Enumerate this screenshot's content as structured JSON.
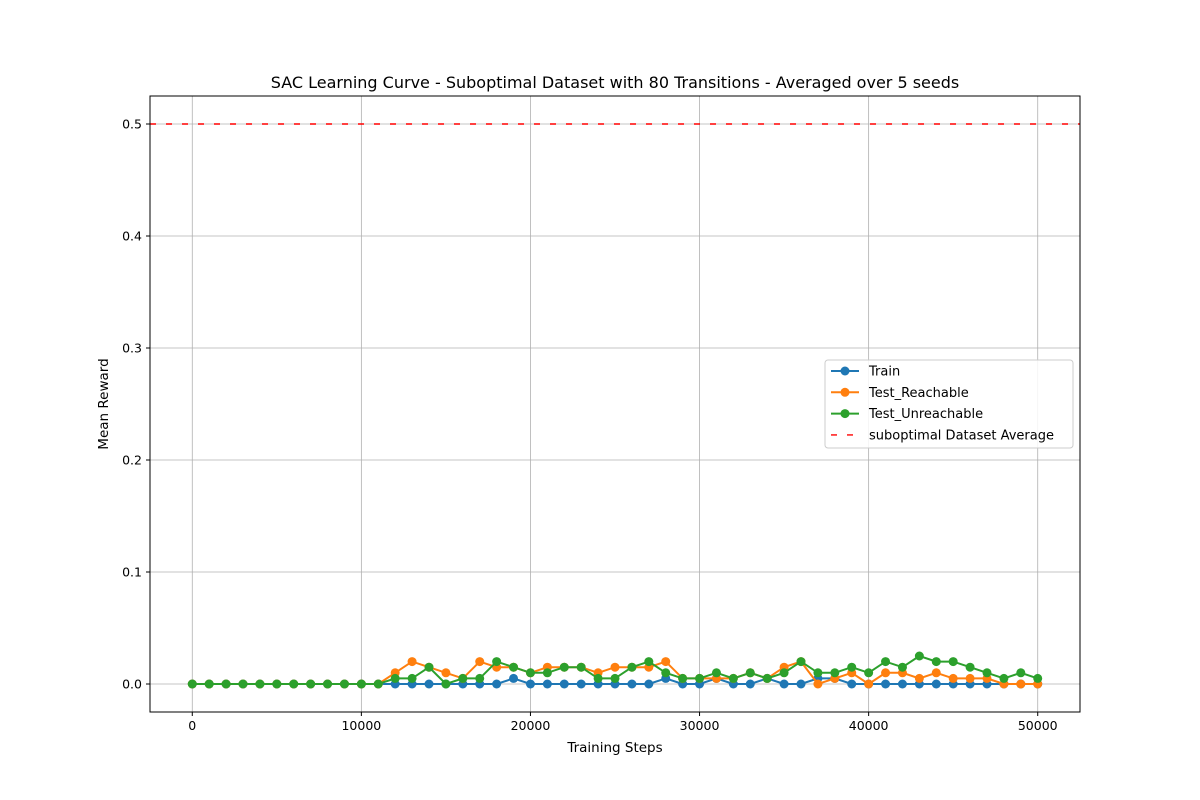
{
  "chart_data": {
    "type": "line",
    "title": "SAC Learning Curve - Suboptimal Dataset with 80 Transitions - Averaged over 5 seeds",
    "xlabel": "Training Steps",
    "ylabel": "Mean Reward",
    "xlim": [
      -2500,
      52500
    ],
    "ylim": [
      -0.025,
      0.525
    ],
    "xticks": [
      0,
      10000,
      20000,
      30000,
      40000,
      50000
    ],
    "xtick_labels": [
      "0",
      "10000",
      "20000",
      "30000",
      "40000",
      "50000"
    ],
    "yticks": [
      0.0,
      0.1,
      0.2,
      0.3,
      0.4,
      0.5
    ],
    "ytick_labels": [
      "0.0",
      "0.1",
      "0.2",
      "0.3",
      "0.4",
      "0.5"
    ],
    "grid": true,
    "legend_position": "center-right",
    "x": [
      0,
      1000,
      2000,
      3000,
      4000,
      5000,
      6000,
      7000,
      8000,
      9000,
      10000,
      11000,
      12000,
      13000,
      14000,
      15000,
      16000,
      17000,
      18000,
      19000,
      20000,
      21000,
      22000,
      23000,
      24000,
      25000,
      26000,
      27000,
      28000,
      29000,
      30000,
      31000,
      32000,
      33000,
      34000,
      35000,
      36000,
      37000,
      38000,
      39000,
      40000,
      41000,
      42000,
      43000,
      44000,
      45000,
      46000,
      47000,
      48000,
      49000,
      50000
    ],
    "series": [
      {
        "name": "Train",
        "color": "#1f77b4",
        "values": [
          0,
          0,
          0,
          0,
          0,
          0,
          0,
          0,
          0,
          0,
          0,
          0,
          0,
          0,
          0,
          0,
          0,
          0,
          0,
          0.005,
          0,
          0,
          0,
          0,
          0,
          0,
          0,
          0,
          0.005,
          0,
          0,
          0.005,
          0,
          0,
          0.005,
          0,
          0,
          0.005,
          0.005,
          0,
          0,
          0,
          0,
          0,
          0,
          0,
          0,
          0,
          0,
          0,
          0
        ]
      },
      {
        "name": "Test_Reachable",
        "color": "#ff7f0e",
        "values": [
          0,
          0,
          0,
          0,
          0,
          0,
          0,
          0,
          0,
          0,
          0,
          0,
          0.01,
          0.02,
          0.015,
          0.01,
          0.005,
          0.02,
          0.015,
          0.015,
          0.01,
          0.015,
          0.015,
          0.015,
          0.01,
          0.015,
          0.015,
          0.015,
          0.02,
          0.005,
          0.005,
          0.005,
          0.005,
          0.01,
          0.005,
          0.015,
          0.02,
          0,
          0.005,
          0.01,
          0,
          0.01,
          0.01,
          0.005,
          0.01,
          0.005,
          0.005,
          0.005,
          0,
          0,
          0
        ]
      },
      {
        "name": "Test_Unreachable",
        "color": "#2ca02c",
        "values": [
          0,
          0,
          0,
          0,
          0,
          0,
          0,
          0,
          0,
          0,
          0,
          0,
          0.005,
          0.005,
          0.015,
          0,
          0.005,
          0.005,
          0.02,
          0.015,
          0.01,
          0.01,
          0.015,
          0.015,
          0.005,
          0.005,
          0.015,
          0.02,
          0.01,
          0.005,
          0.005,
          0.01,
          0.005,
          0.01,
          0.005,
          0.01,
          0.02,
          0.01,
          0.01,
          0.015,
          0.01,
          0.02,
          0.015,
          0.025,
          0.02,
          0.02,
          0.015,
          0.01,
          0.005,
          0.01,
          0.005
        ]
      }
    ],
    "reference_line": {
      "name": "suboptimal Dataset Average",
      "value": 0.5,
      "color": "#ff0000",
      "style": "dashed"
    }
  }
}
